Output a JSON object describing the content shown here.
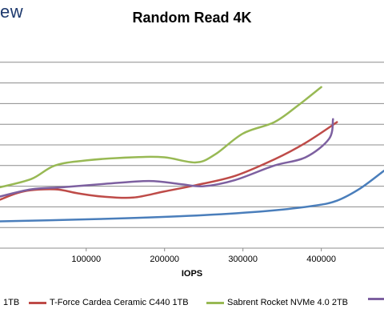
{
  "brand": {
    "text": "ew"
  },
  "chart_data": {
    "type": "line",
    "title": "Random Read 4K",
    "xlabel": "IOPS",
    "ylabel": "",
    "xlim": [
      -10000,
      480000
    ],
    "ylim": [
      0,
      10
    ],
    "grid": true,
    "x_ticks": [
      {
        "value": 100000,
        "label": "100000"
      },
      {
        "value": 200000,
        "label": "200000"
      },
      {
        "value": 300000,
        "label": "300000"
      },
      {
        "value": 400000,
        "label": "400000"
      }
    ],
    "y_gridlines": [
      0,
      1,
      2,
      3,
      4,
      5,
      6,
      7,
      8,
      9
    ],
    "series": [
      {
        "name": "1TB",
        "color": "#4a7ebb",
        "points": [
          [
            -10000,
            1.3
          ],
          [
            50000,
            1.35
          ],
          [
            150000,
            1.45
          ],
          [
            250000,
            1.6
          ],
          [
            330000,
            1.8
          ],
          [
            390000,
            2.05
          ],
          [
            420000,
            2.3
          ],
          [
            450000,
            2.9
          ],
          [
            480000,
            3.75
          ]
        ]
      },
      {
        "name": "T-Force Cardea Ceramic C440 1TB",
        "color": "#be4b48",
        "points": [
          [
            -10000,
            2.35
          ],
          [
            20000,
            2.75
          ],
          [
            60000,
            2.85
          ],
          [
            90000,
            2.65
          ],
          [
            120000,
            2.5
          ],
          [
            160000,
            2.45
          ],
          [
            200000,
            2.75
          ],
          [
            240000,
            3.05
          ],
          [
            290000,
            3.5
          ],
          [
            340000,
            4.3
          ],
          [
            380000,
            5.1
          ],
          [
            420000,
            6.1
          ]
        ]
      },
      {
        "name": "Sabrent Rocket NVMe 4.0 2TB",
        "color": "#98b954",
        "points": [
          [
            -10000,
            2.95
          ],
          [
            30000,
            3.35
          ],
          [
            60000,
            4.0
          ],
          [
            100000,
            4.25
          ],
          [
            160000,
            4.4
          ],
          [
            200000,
            4.4
          ],
          [
            240000,
            4.15
          ],
          [
            265000,
            4.55
          ],
          [
            300000,
            5.55
          ],
          [
            340000,
            6.1
          ],
          [
            370000,
            6.9
          ],
          [
            400000,
            7.8
          ]
        ]
      },
      {
        "name": "",
        "color": "#7d60a0",
        "points": [
          [
            -10000,
            2.5
          ],
          [
            30000,
            2.85
          ],
          [
            70000,
            2.95
          ],
          [
            120000,
            3.1
          ],
          [
            180000,
            3.25
          ],
          [
            220000,
            3.1
          ],
          [
            250000,
            3.0
          ],
          [
            290000,
            3.3
          ],
          [
            340000,
            4.0
          ],
          [
            380000,
            4.4
          ],
          [
            410000,
            5.3
          ],
          [
            415000,
            6.25
          ]
        ]
      }
    ]
  }
}
